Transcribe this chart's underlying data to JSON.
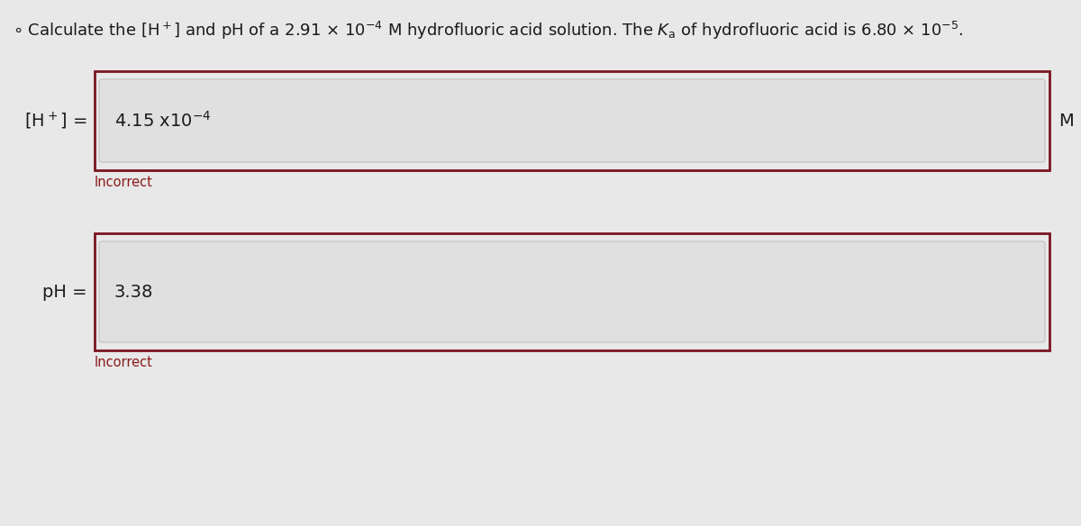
{
  "page_background": "#e8e8e8",
  "title_fontsize": 13.0,
  "label_fontsize": 14,
  "value_fontsize": 14,
  "incorrect_fontsize": 10.5,
  "outer_box_color": "#7a1520",
  "inner_box_facecolor": "#e0e0e0",
  "inner_box_edgecolor": "#c0c0c0",
  "text_color": "#1a1a1a",
  "incorrect_color": "#8b1a1a",
  "unit_color": "#1a1a1a",
  "value1_text": "4.15 x10$^{-4}$",
  "value2_text": "3.38",
  "incorrect1": "Incorrect",
  "incorrect2": "Incorrect",
  "unit": "M"
}
